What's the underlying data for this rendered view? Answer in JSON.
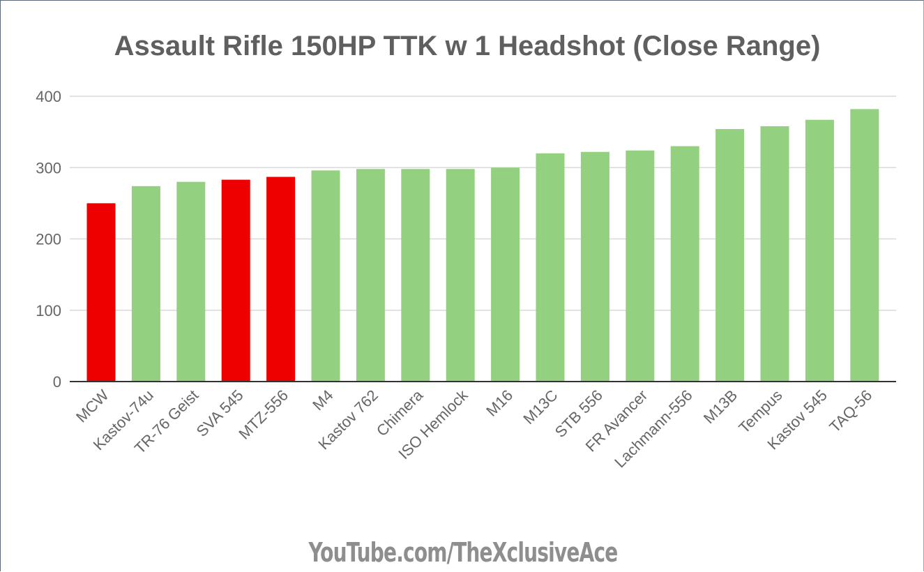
{
  "chart_data": {
    "type": "bar",
    "title": "Assault Rifle 150HP TTK w 1 Headshot (Close Range)",
    "xlabel": "",
    "ylabel": "",
    "ylim": [
      0,
      400
    ],
    "yticks": [
      0,
      100,
      200,
      300,
      400
    ],
    "grid": true,
    "legend": "none",
    "categories": [
      "MCW",
      "Kastov-74u",
      "TR-76 Geist",
      "SVA 545",
      "MTZ-556",
      "M4",
      "Kastov 762",
      "Chimera",
      "ISO Hemlock",
      "M16",
      "M13C",
      "STB 556",
      "FR Avancer",
      "Lachmann-556",
      "M13B",
      "Tempus",
      "Kastov 545",
      "TAQ-56"
    ],
    "values": [
      250,
      274,
      280,
      283,
      287,
      296,
      298,
      298,
      298,
      300,
      320,
      322,
      324,
      330,
      354,
      358,
      367,
      382
    ],
    "highlighted": [
      "MCW",
      "SVA 545",
      "MTZ-556"
    ],
    "colors": {
      "default": "#93d07f",
      "highlight": "#ee0000",
      "grid": "#d9d9d9",
      "axis": "#333333",
      "tick_text": "#666666"
    }
  },
  "footer": {
    "watermark": "YouTube.com/TheXclusiveAce"
  }
}
